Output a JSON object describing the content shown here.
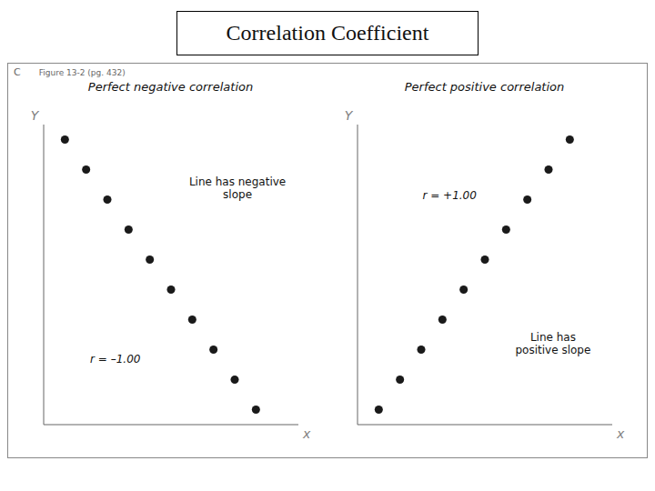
{
  "title": "Correlation Coefficient",
  "annotations": [
    "C",
    "Figure 13-2 (pg. 432)"
  ],
  "chart_data": [
    {
      "type": "scatter",
      "title": "Perfect negative correlation",
      "annotations": [
        "Line has negative\nslope",
        "r = –1.00"
      ],
      "xlabel": "x",
      "ylabel": "Y",
      "x": [
        1,
        2,
        3,
        4,
        5,
        6,
        7,
        8,
        9,
        10
      ],
      "values": [
        9.5,
        8.5,
        7.5,
        6.5,
        5.5,
        4.5,
        3.5,
        2.5,
        1.5,
        0.5
      ],
      "color": "#1a1a1a",
      "xlim": [
        0,
        12
      ],
      "ylim": [
        0,
        10
      ],
      "tick_labels": false,
      "grid": false
    },
    {
      "type": "scatter",
      "title": "Perfect positive correlation",
      "annotations": [
        "r = +1.00",
        "Line has\npositive slope"
      ],
      "xlabel": "x",
      "ylabel": "Y",
      "x": [
        1,
        2,
        3,
        4,
        5,
        6,
        7,
        8,
        9,
        10
      ],
      "values": [
        0.5,
        1.5,
        2.5,
        3.5,
        4.5,
        5.5,
        6.5,
        7.5,
        8.5,
        9.5
      ],
      "color": "#1a1a1a",
      "xlim": [
        0,
        12
      ],
      "ylim": [
        0,
        10
      ],
      "tick_labels": false,
      "grid": false
    }
  ]
}
